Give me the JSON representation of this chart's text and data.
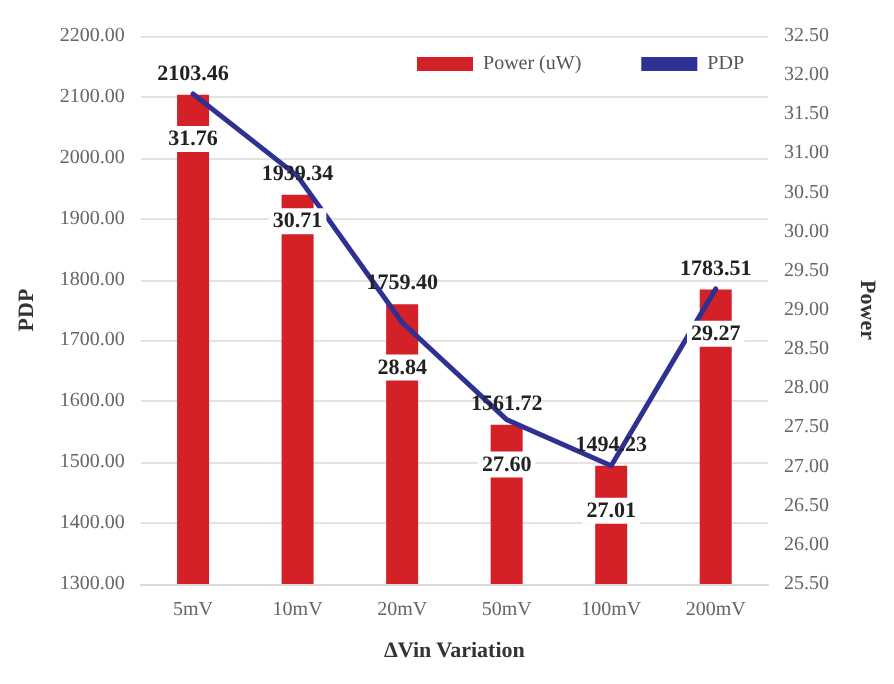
{
  "chart_data": {
    "type": "bar",
    "xlabel": "ΔVin Variation",
    "ylabel": "PDP",
    "y2label": "Power",
    "categories": [
      "5mV",
      "10mV",
      "20mV",
      "50mV",
      "100mV",
      "200mV"
    ],
    "series": [
      {
        "name": "Power (uW)",
        "color": "#d42027",
        "values": [
          2103.46,
          1939.34,
          1759.4,
          1561.72,
          1494.23,
          1783.51
        ],
        "value_labels": [
          "2103.46",
          "1939.34",
          "1759.40",
          "1561.72",
          "1494.23",
          "1783.51"
        ]
      },
      {
        "name": "PDP",
        "type": "line",
        "axis": "y2",
        "color": "#2e3192",
        "values": [
          31.76,
          30.71,
          28.84,
          27.6,
          27.01,
          29.27
        ],
        "value_labels": [
          "31.76",
          "30.71",
          "28.84",
          "27.60",
          "27.01",
          "29.27"
        ]
      }
    ],
    "ylim": [
      1300,
      2200
    ],
    "yticks": [
      {
        "value": 1300,
        "label": "1300.00"
      },
      {
        "value": 1400,
        "label": "1400.00"
      },
      {
        "value": 1500,
        "label": "1500.00"
      },
      {
        "value": 1600,
        "label": "1600.00"
      },
      {
        "value": 1700,
        "label": "1700.00"
      },
      {
        "value": 1800,
        "label": "1800.00"
      },
      {
        "value": 1900,
        "label": "1900.00"
      },
      {
        "value": 2000,
        "label": "2000.00"
      },
      {
        "value": 2100,
        "label": "2100.00"
      },
      {
        "value": 2200,
        "label": "2200.00"
      }
    ],
    "y2lim": [
      25.5,
      32.5
    ],
    "y2ticks": [
      {
        "value": 25.5,
        "label": "25.50"
      },
      {
        "value": 26,
        "label": "26.00"
      },
      {
        "value": 26.5,
        "label": "26.50"
      },
      {
        "value": 27,
        "label": "27.00"
      },
      {
        "value": 27.5,
        "label": "27.50"
      },
      {
        "value": 28,
        "label": "28.00"
      },
      {
        "value": 28.5,
        "label": "28.50"
      },
      {
        "value": 29,
        "label": "29.00"
      },
      {
        "value": 29.5,
        "label": "29.50"
      },
      {
        "value": 30,
        "label": "30.00"
      },
      {
        "value": 30.5,
        "label": "30.50"
      },
      {
        "value": 31,
        "label": "31.00"
      },
      {
        "value": 31.5,
        "label": "31.50"
      },
      {
        "value": 32,
        "label": "32.00"
      },
      {
        "value": 32.5,
        "label": "32.50"
      }
    ],
    "grid": "y",
    "legend": "top right",
    "marker": "none",
    "line_style": "solid"
  }
}
